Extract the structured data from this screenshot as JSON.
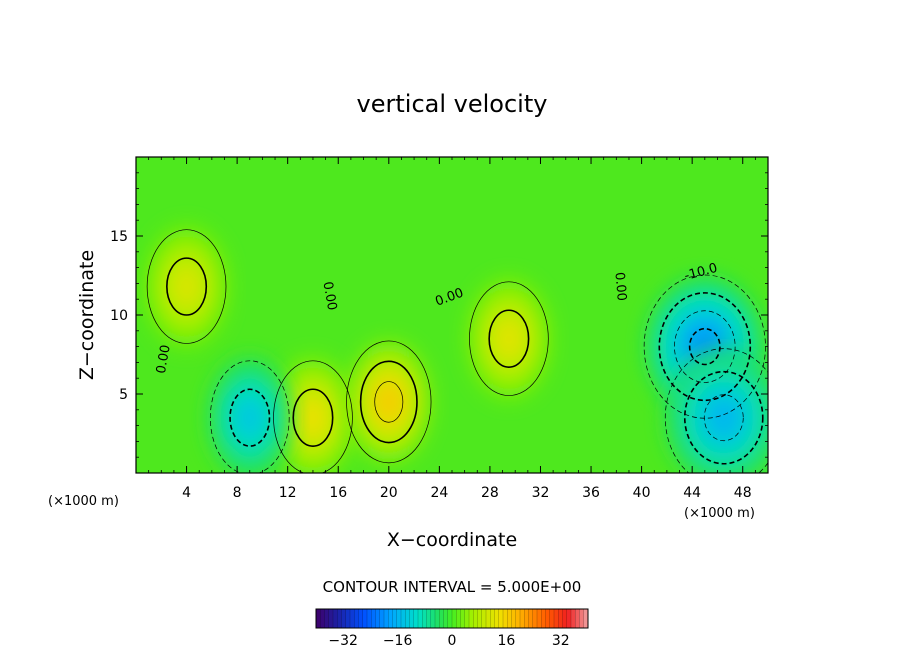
{
  "chart_data": {
    "type": "heatmap",
    "title": "vertical velocity",
    "xlabel": "X−coordinate",
    "ylabel": "Z−coordinate",
    "x_unit_left": "(×1000 m)",
    "x_unit_right": "(×1000 m)",
    "xlim": [
      0,
      50
    ],
    "ylim": [
      0,
      20
    ],
    "x_ticks": [
      {
        "value": 4,
        "label": "4"
      },
      {
        "value": 8,
        "label": "8"
      },
      {
        "value": 12,
        "label": "12"
      },
      {
        "value": 16,
        "label": "16"
      },
      {
        "value": 20,
        "label": "20"
      },
      {
        "value": 24,
        "label": "24"
      },
      {
        "value": 28,
        "label": "28"
      },
      {
        "value": 32,
        "label": "32"
      },
      {
        "value": 36,
        "label": "36"
      },
      {
        "value": 40,
        "label": "40"
      },
      {
        "value": 44,
        "label": "44"
      },
      {
        "value": 48,
        "label": "48"
      }
    ],
    "y_ticks": [
      {
        "value": 5,
        "label": "5"
      },
      {
        "value": 10,
        "label": "10"
      },
      {
        "value": 15,
        "label": "15"
      }
    ],
    "contour_interval_text": "CONTOUR INTERVAL = 5.000E+00",
    "contour_labels": [
      {
        "text": "0.00",
        "x": 2.2,
        "z": 7.2,
        "angle": -80
      },
      {
        "text": "0.00",
        "x": 15.3,
        "z": 11.2,
        "angle": 80
      },
      {
        "text": "0.00",
        "x": 24.8,
        "z": 11.1,
        "angle": -20
      },
      {
        "text": "0.00",
        "x": 38.3,
        "z": 11.8,
        "angle": 85
      },
      {
        "text": "-10.0",
        "x": 44.7,
        "z": 12.7,
        "angle": -15
      }
    ],
    "features": [
      {
        "kind": "updraft",
        "x": 4,
        "z": 11.8,
        "peak": 12
      },
      {
        "kind": "updraft",
        "x": 14,
        "z": 3.5,
        "peak": 14
      },
      {
        "kind": "updraft",
        "x": 20,
        "z": 4.5,
        "peak": 17
      },
      {
        "kind": "updraft",
        "x": 29.5,
        "z": 8.5,
        "peak": 13
      },
      {
        "kind": "downdraft",
        "x": 9,
        "z": 3.5,
        "peak": -14
      },
      {
        "kind": "downdraft",
        "x": 45,
        "z": 8,
        "peak": -20
      },
      {
        "kind": "downdraft",
        "x": 46.5,
        "z": 3.5,
        "peak": -16
      }
    ],
    "colorbar": {
      "range": [
        -40,
        40
      ],
      "ticks": [
        {
          "value": -32,
          "label": "−32"
        },
        {
          "value": -16,
          "label": "−16"
        },
        {
          "value": 0,
          "label": "0"
        },
        {
          "value": 16,
          "label": "16"
        },
        {
          "value": 32,
          "label": "32"
        }
      ],
      "stops": [
        {
          "value": -40,
          "color": "#40006a"
        },
        {
          "value": -34,
          "color": "#1e1ea0"
        },
        {
          "value": -26,
          "color": "#0050ff"
        },
        {
          "value": -18,
          "color": "#00a6ff"
        },
        {
          "value": -10,
          "color": "#00e0c8"
        },
        {
          "value": -4,
          "color": "#20e060"
        },
        {
          "value": 0,
          "color": "#44ee22"
        },
        {
          "value": 6,
          "color": "#a4f000"
        },
        {
          "value": 14,
          "color": "#f0e000"
        },
        {
          "value": 20,
          "color": "#ffb000"
        },
        {
          "value": 28,
          "color": "#ff5a00"
        },
        {
          "value": 34,
          "color": "#f02020"
        },
        {
          "value": 40,
          "color": "#f0a0a0"
        }
      ]
    },
    "grid": false,
    "colors": {
      "contour": "#000000",
      "background": "#ffffff"
    }
  }
}
